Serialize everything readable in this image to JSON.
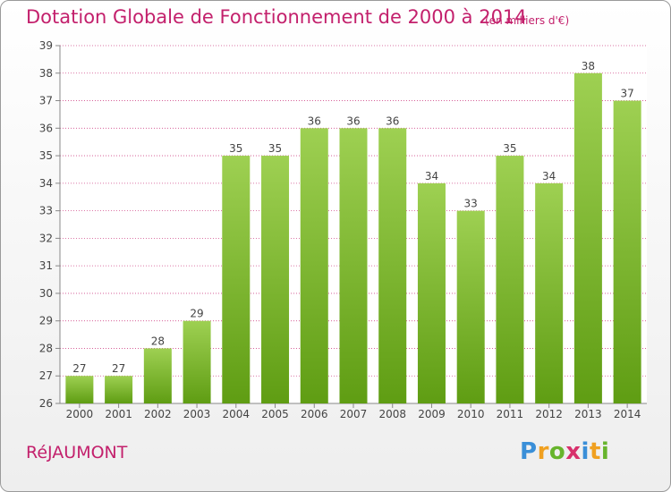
{
  "title": "Dotation Globale de Fonctionnement de 2000 à 2014",
  "subtitle": "(en milliers d'€)",
  "commune": "RéJAUMONT",
  "logo": {
    "letters": [
      "P",
      "r",
      "o",
      "x",
      "i",
      "t",
      "i"
    ],
    "colors": [
      "#3a8fd8",
      "#f0a020",
      "#67b42c",
      "#d8306c",
      "#3a8fd8",
      "#f0a020",
      "#67b42c"
    ]
  },
  "colors": {
    "title": "#c3206c",
    "bar_top": "#9ed052",
    "bar_bottom": "#5f9d13",
    "grid": "#d04a8a"
  },
  "chart_data": {
    "type": "bar",
    "categories": [
      "2000",
      "2001",
      "2002",
      "2003",
      "2004",
      "2005",
      "2006",
      "2007",
      "2008",
      "2009",
      "2010",
      "2011",
      "2012",
      "2013",
      "2014"
    ],
    "values": [
      27,
      27,
      28,
      29,
      35,
      35,
      36,
      36,
      36,
      34,
      33,
      35,
      34,
      38,
      37
    ],
    "ylim": [
      26,
      39
    ],
    "yticks": [
      26,
      27,
      28,
      29,
      30,
      31,
      32,
      33,
      34,
      35,
      36,
      37,
      38,
      39
    ],
    "grid": true
  }
}
